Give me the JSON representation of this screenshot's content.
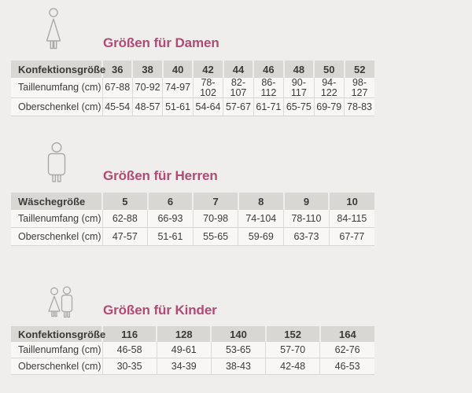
{
  "accent_color": "#b14a74",
  "background_color": "#efeeec",
  "sections": [
    {
      "id": "damen",
      "icon": "woman-icon",
      "title": "Größen für Damen",
      "table": {
        "header": [
          "Konfektionsgröße",
          "36",
          "38",
          "40",
          "42",
          "44",
          "46",
          "48",
          "50",
          "52"
        ],
        "rows": [
          [
            "Taillenumfang (cm)",
            "67-88",
            "70-92",
            "74-97",
            "78-102",
            "82-107",
            "86-112",
            "90-117",
            "94-122",
            "98-127"
          ],
          [
            "Oberschenkel (cm)",
            "45-54",
            "48-57",
            "51-61",
            "54-64",
            "57-67",
            "61-71",
            "65-75",
            "69-79",
            "78-83"
          ]
        ]
      }
    },
    {
      "id": "herren",
      "icon": "man-icon",
      "title": "Größen für Herren",
      "table": {
        "header": [
          "Wäschegröße",
          "5",
          "6",
          "7",
          "8",
          "9",
          "10"
        ],
        "rows": [
          [
            "Taillenumfang (cm)",
            "62-88",
            "66-93",
            "70-98",
            "74-104",
            "78-110",
            "84-115"
          ],
          [
            "Oberschenkel (cm)",
            "47-57",
            "51-61",
            "55-65",
            "59-69",
            "63-73",
            "67-77"
          ]
        ]
      }
    },
    {
      "id": "kinder",
      "icon": "children-icon",
      "title": "Größen für Kinder",
      "table": {
        "header": [
          "Konfektionsgröße",
          "116",
          "128",
          "140",
          "152",
          "164"
        ],
        "rows": [
          [
            "Taillenumfang (cm)",
            "46-58",
            "49-61",
            "53-65",
            "57-70",
            "62-76"
          ],
          [
            "Oberschenkel (cm)",
            "30-35",
            "34-39",
            "38-43",
            "42-48",
            "46-53"
          ]
        ]
      }
    }
  ]
}
